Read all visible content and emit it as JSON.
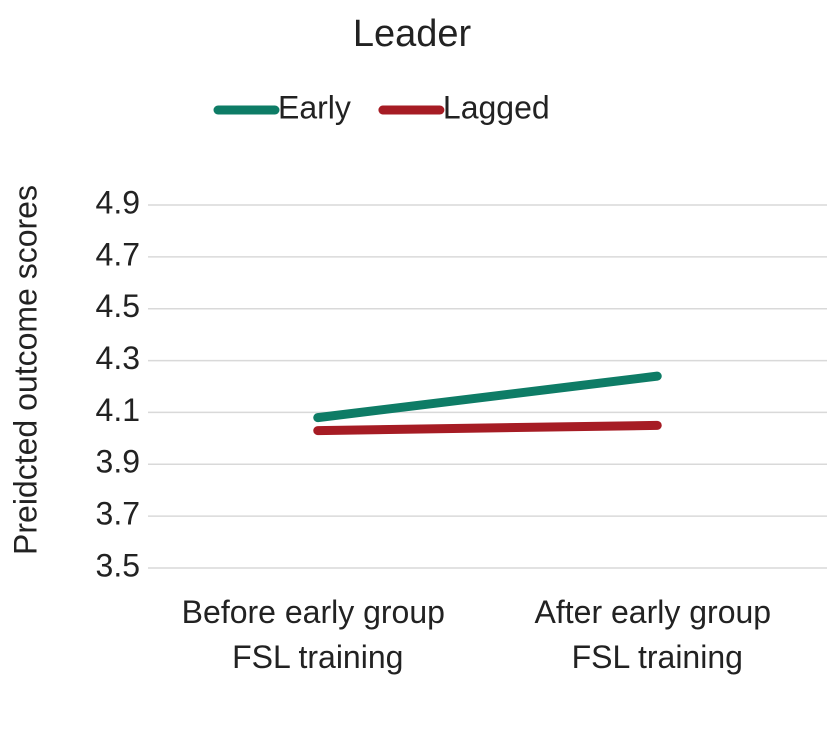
{
  "chart_data": {
    "type": "line",
    "title": "Leader",
    "y_label": "Preidcted outcome scores",
    "categories": [
      "Before early group FSL training",
      "After early group FSL training"
    ],
    "series": [
      {
        "name": "Early",
        "color": "#0e7c66",
        "values": [
          4.08,
          4.24
        ]
      },
      {
        "name": "Lagged",
        "color": "#a61c24",
        "values": [
          4.03,
          4.05
        ]
      }
    ],
    "ylim": [
      3.5,
      4.9
    ],
    "yticks": [
      3.5,
      3.7,
      3.9,
      4.1,
      4.3,
      4.5,
      4.7,
      4.9
    ],
    "grid": true,
    "legend": "top"
  }
}
